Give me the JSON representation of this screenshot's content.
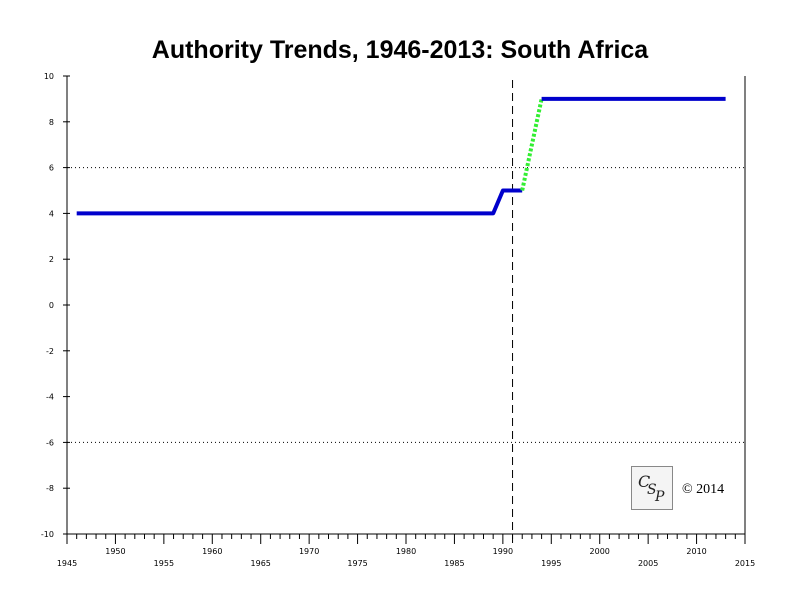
{
  "chart_data": {
    "type": "line",
    "title": "Authority Trends, 1946-2013: South Africa",
    "xlabel": "",
    "ylabel": "",
    "xlim": [
      1945,
      2015
    ],
    "ylim": [
      -10,
      10
    ],
    "x_ticks_upper": [
      "1950",
      "1960",
      "1970",
      "1980",
      "1990",
      "2000",
      "2010"
    ],
    "x_ticks_lower": [
      "1945",
      "1955",
      "1965",
      "1975",
      "1985",
      "1995",
      "2005",
      "2015"
    ],
    "y_ticks": [
      "10",
      "8",
      "6",
      "4",
      "2",
      "0",
      "-2",
      "-4",
      "-6",
      "-8",
      "-10"
    ],
    "reference_lines_y": [
      6,
      -6
    ],
    "event_line_x": 1991,
    "grid": false,
    "series": [
      {
        "color": "#0000cc",
        "style": "solid",
        "points": [
          [
            1946,
            4
          ],
          [
            1989,
            4
          ],
          [
            1990,
            5
          ],
          [
            1992,
            5
          ]
        ]
      },
      {
        "color": "#33ee33",
        "style": "dotted",
        "points": [
          [
            1992,
            5
          ],
          [
            1994,
            9
          ]
        ]
      },
      {
        "color": "#0000cc",
        "style": "solid",
        "points": [
          [
            1994,
            9
          ],
          [
            2013,
            9
          ]
        ]
      }
    ]
  },
  "logo_text": "CSP",
  "copyright": "© 2014"
}
